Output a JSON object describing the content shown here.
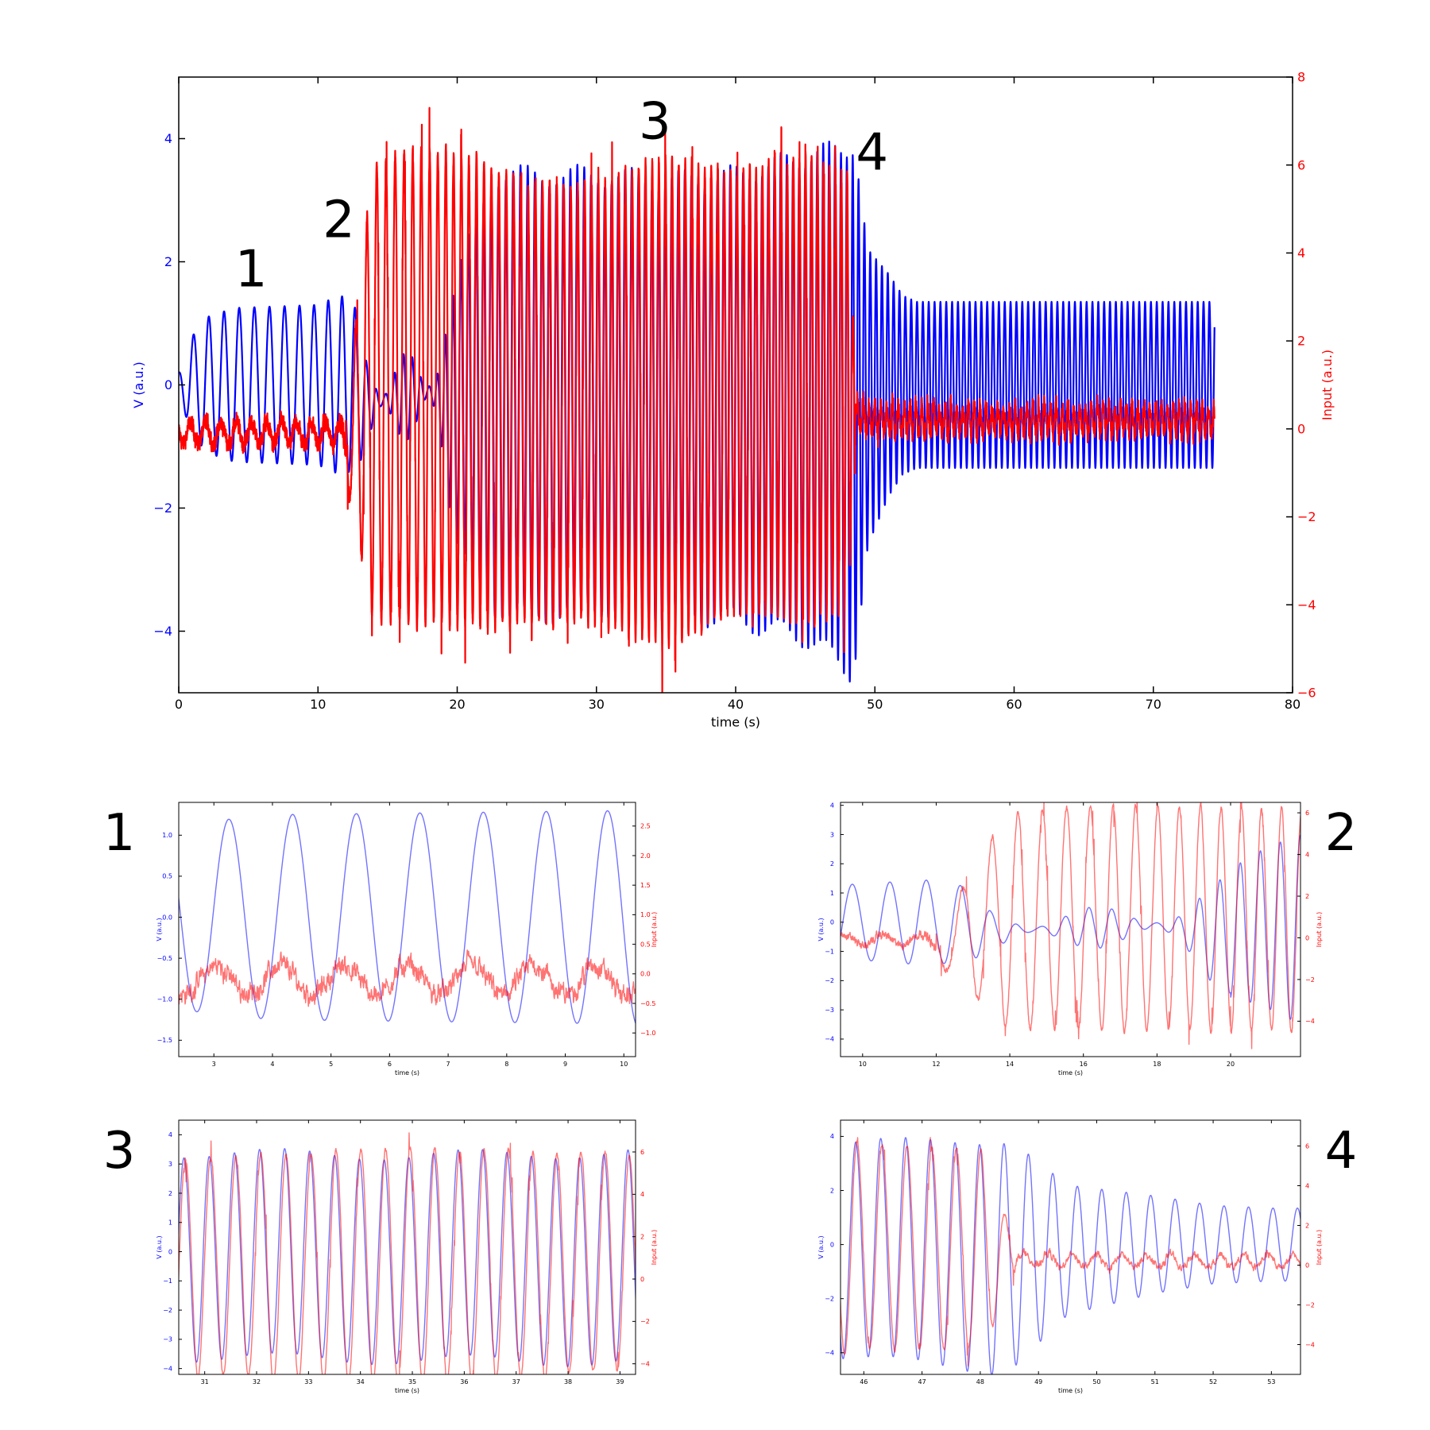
{
  "colors": {
    "v": "#0000ff",
    "input": "#ff0000",
    "axis": "#000000"
  },
  "chart_data": [
    {
      "id": "main",
      "type": "line",
      "xlabel": "time (s)",
      "ylabel_left": "V (a.u.)",
      "ylabel_right": "Input (a.u.)",
      "xlim": [
        0,
        80
      ],
      "ylim_left": [
        -5,
        5
      ],
      "ylim_right": [
        -6,
        8
      ],
      "xticks": [
        0,
        10,
        20,
        30,
        40,
        50,
        60,
        70,
        80
      ],
      "yticks_left": [
        -4,
        -2,
        0,
        2,
        4
      ],
      "yticks_right": [
        -6,
        -4,
        -2,
        0,
        2,
        4,
        6,
        8
      ],
      "annotations": [
        {
          "text": "1",
          "x": 5.2,
          "y": 1.6
        },
        {
          "text": "2",
          "x": 11.5,
          "y": 2.4
        },
        {
          "text": "3",
          "x": 34.2,
          "y": 4.0
        },
        {
          "text": "4",
          "x": 49.8,
          "y": 3.5
        }
      ],
      "series": [
        {
          "axis": "left",
          "x": [
            0,
            1,
            2,
            4,
            10,
            11.5,
            12.5,
            13.5,
            16,
            18,
            19,
            20,
            22,
            23,
            24,
            30,
            35,
            40,
            45,
            47,
            48.5,
            49.5,
            51,
            52,
            53,
            74.4
          ],
          "amplitude": [
            0.2,
            0.8,
            1.1,
            1.25,
            1.3,
            1.45,
            1.4,
            0.8,
            0.7,
            0.8,
            1.2,
            2.2,
            3.3,
            3.5,
            3.6,
            3.5,
            3.5,
            3.6,
            3.9,
            4.1,
            4.3,
            2.4,
            1.8,
            1.45,
            1.35,
            1.35
          ],
          "offset": [
            0,
            0,
            0,
            0,
            0,
            0,
            0,
            -0.3,
            -0.2,
            -0.1,
            -0.3,
            -0.5,
            -0.2,
            -0.1,
            -0.2,
            -0.1,
            -0.2,
            -0.2,
            -0.2,
            -0.3,
            -0.4,
            -0.2,
            0,
            0,
            0,
            0
          ],
          "period_s": [
            1.1,
            1.08,
            0.97,
            0.68,
            0.55,
            0.49,
            0.46,
            0.42,
            0.42,
            0.42
          ]
        },
        {
          "axis": "right",
          "x": [
            0,
            11.5,
            12.5,
            13.5,
            14,
            16,
            20,
            25,
            30,
            35,
            40,
            45,
            48,
            48.6,
            50,
            74.4
          ],
          "amplitude": [
            0.5,
            0.6,
            1.8,
            4.2,
            5.2,
            5.3,
            5.4,
            5.0,
            5.0,
            5.6,
            5.0,
            5.3,
            5.0,
            0.9,
            0.7,
            0.65
          ],
          "offset": [
            -0.1,
            -0.1,
            0,
            0.5,
            0.8,
            1.0,
            0.9,
            0.6,
            0.6,
            0.6,
            0.8,
            0.9,
            0.8,
            0.3,
            0.2,
            0.2
          ]
        }
      ]
    },
    {
      "id": "panel1",
      "label": "1",
      "type": "line",
      "xlabel": "time (s)",
      "ylabel_left": "V (a.u.)",
      "ylabel_right": "Input (a.u.)",
      "xlim": [
        2.4,
        10.2
      ],
      "ylim_left": [
        -1.7,
        1.4
      ],
      "ylim_right": [
        -1.4,
        2.9
      ],
      "xticks": [
        3,
        4,
        5,
        6,
        7,
        8,
        9,
        10
      ],
      "yticks_left": [
        -1.5,
        -1.0,
        -0.5,
        0.0,
        0.5,
        1.0
      ],
      "yticks_right": [
        -1.0,
        -0.5,
        0.0,
        0.5,
        1.0,
        1.5,
        2.0,
        2.5
      ]
    },
    {
      "id": "panel2",
      "label": "2",
      "type": "line",
      "xlabel": "time (s)",
      "ylabel_left": "V (a.u.)",
      "ylabel_right": "Input (a.u.)",
      "xlim": [
        9.4,
        21.9
      ],
      "ylim_left": [
        -4.6,
        4.1
      ],
      "ylim_right": [
        -5.7,
        6.5
      ],
      "xticks": [
        10,
        12,
        14,
        16,
        18,
        20
      ],
      "yticks_left": [
        -4,
        -3,
        -2,
        -1,
        0,
        1,
        2,
        3,
        4
      ],
      "yticks_right": [
        -4,
        -2,
        0,
        2,
        4,
        6
      ]
    },
    {
      "id": "panel3",
      "label": "3",
      "type": "line",
      "xlabel": "time (s)",
      "ylabel_left": "V (a.u.)",
      "ylabel_right": "Input (a.u.)",
      "xlim": [
        30.5,
        39.3
      ],
      "ylim_left": [
        -4.2,
        4.5
      ],
      "ylim_right": [
        -4.5,
        7.5
      ],
      "xticks": [
        31,
        32,
        33,
        34,
        35,
        36,
        37,
        38,
        39
      ],
      "yticks_left": [
        -4,
        -3,
        -2,
        -1,
        0,
        1,
        2,
        3,
        4
      ],
      "yticks_right": [
        -4,
        -2,
        0,
        2,
        4,
        6
      ]
    },
    {
      "id": "panel4",
      "label": "4",
      "type": "line",
      "xlabel": "time (s)",
      "ylabel_left": "V (a.u.)",
      "ylabel_right": "Input (a.u.)",
      "xlim": [
        45.6,
        53.5
      ],
      "ylim_left": [
        -4.8,
        4.6
      ],
      "ylim_right": [
        -5.5,
        7.3
      ],
      "xticks": [
        46,
        47,
        48,
        49,
        50,
        51,
        52,
        53
      ],
      "yticks_left": [
        -4,
        -2,
        0,
        2,
        4
      ],
      "yticks_right": [
        -4,
        -2,
        0,
        2,
        4,
        6
      ]
    }
  ]
}
